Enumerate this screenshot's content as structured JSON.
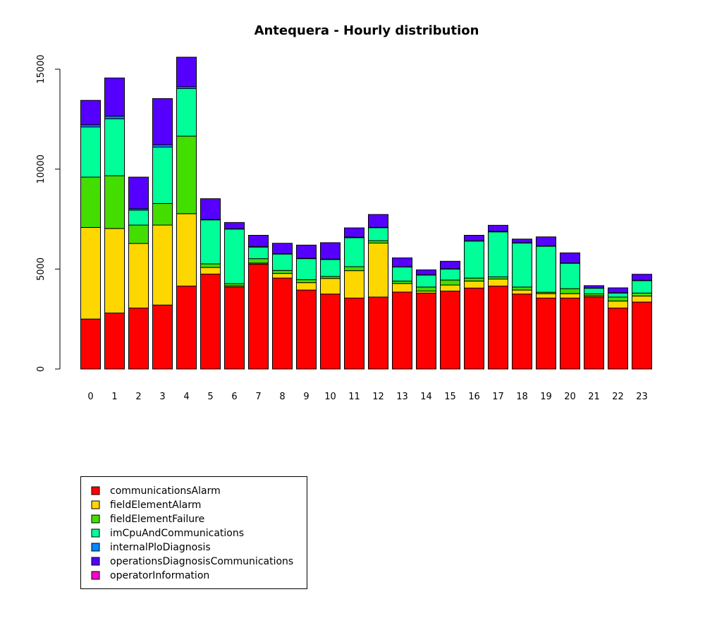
{
  "chart_data": {
    "type": "bar",
    "stacked": true,
    "title": "Antequera - Hourly distribution",
    "xlabel": "",
    "ylabel": "",
    "ylim": [
      0,
      16000
    ],
    "y_ticks": [
      0,
      5000,
      10000,
      15000
    ],
    "grid": false,
    "legend_position": "bottom-left",
    "categories": [
      "0",
      "1",
      "2",
      "3",
      "4",
      "5",
      "6",
      "7",
      "8",
      "9",
      "10",
      "11",
      "12",
      "13",
      "14",
      "15",
      "16",
      "17",
      "18",
      "19",
      "20",
      "21",
      "22",
      "23"
    ],
    "series": [
      {
        "name": "communicationsAlarm",
        "color": "#FF0000",
        "values": [
          2500,
          2800,
          3050,
          3200,
          4150,
          4750,
          4100,
          5250,
          4550,
          3950,
          3750,
          3550,
          3600,
          3850,
          3800,
          3900,
          4050,
          4150,
          3750,
          3550,
          3550,
          3600,
          3050,
          3350
        ]
      },
      {
        "name": "fieldElementAlarm",
        "color": "#FFD700",
        "values": [
          4580,
          4230,
          3230,
          4000,
          3620,
          330,
          60,
          50,
          230,
          370,
          780,
          1370,
          2700,
          430,
          100,
          300,
          350,
          350,
          200,
          220,
          220,
          60,
          350,
          300
        ]
      },
      {
        "name": "fieldElementFailure",
        "color": "#44DD00",
        "values": [
          2520,
          2640,
          920,
          1080,
          3880,
          180,
          110,
          220,
          150,
          150,
          100,
          200,
          120,
          120,
          200,
          250,
          150,
          110,
          150,
          70,
          250,
          100,
          200,
          150
        ]
      },
      {
        "name": "imCpuAndCommunications",
        "color": "#00FF99",
        "values": [
          2510,
          2850,
          750,
          2820,
          2380,
          2200,
          2730,
          580,
          820,
          1050,
          850,
          1450,
          650,
          700,
          600,
          550,
          1850,
          2250,
          2200,
          2300,
          1270,
          280,
          200,
          620
        ]
      },
      {
        "name": "internalPloDiagnosis",
        "color": "#0088FF",
        "values": [
          110,
          130,
          70,
          120,
          90,
          20,
          20,
          30,
          20,
          20,
          20,
          30,
          20,
          20,
          20,
          20,
          20,
          30,
          20,
          20,
          20,
          10,
          20,
          20
        ]
      },
      {
        "name": "operationsDiagnosisCommunications",
        "color": "#5500FF",
        "values": [
          1220,
          1910,
          1580,
          2310,
          1480,
          1040,
          310,
          560,
          520,
          660,
          820,
          460,
          640,
          440,
          240,
          370,
          270,
          300,
          180,
          450,
          500,
          120,
          240,
          300
        ]
      },
      {
        "name": "operatorInformation",
        "color": "#FF00CC",
        "values": [
          0,
          0,
          0,
          0,
          0,
          0,
          0,
          0,
          0,
          0,
          0,
          0,
          0,
          0,
          0,
          0,
          0,
          0,
          0,
          0,
          0,
          0,
          0,
          0
        ]
      }
    ]
  }
}
